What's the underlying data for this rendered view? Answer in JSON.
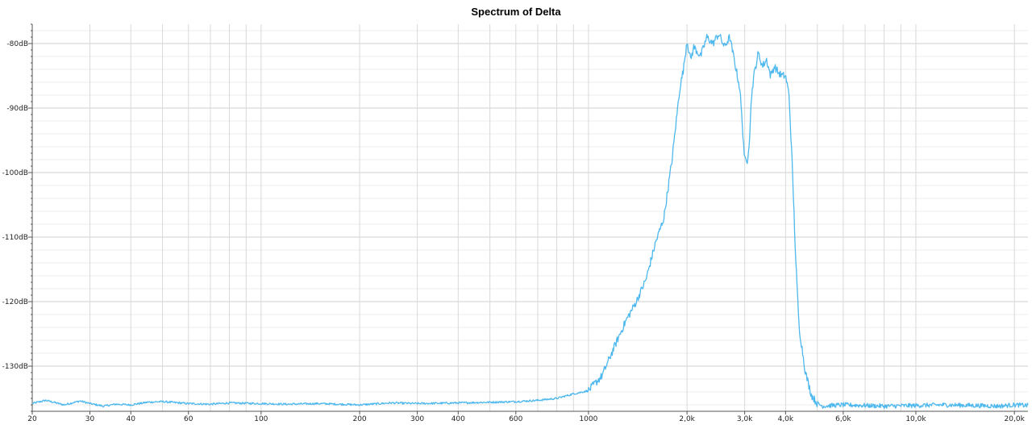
{
  "chart_data": {
    "type": "line",
    "title": "Spectrum of Delta",
    "xlabel": "",
    "ylabel": "",
    "x_scale": "log",
    "xlim": [
      20,
      22000
    ],
    "ylim": [
      -137,
      -77
    ],
    "grid": true,
    "legend": "none",
    "x_ticks": [
      {
        "value": 20,
        "label": "20"
      },
      {
        "value": 30,
        "label": "30"
      },
      {
        "value": 40,
        "label": "40"
      },
      {
        "value": 60,
        "label": "60"
      },
      {
        "value": 100,
        "label": "100"
      },
      {
        "value": 200,
        "label": "200"
      },
      {
        "value": 300,
        "label": "300"
      },
      {
        "value": 400,
        "label": "400"
      },
      {
        "value": 600,
        "label": "600"
      },
      {
        "value": 1000,
        "label": "1000"
      },
      {
        "value": 2000,
        "label": "2,0k"
      },
      {
        "value": 3000,
        "label": "3,0k"
      },
      {
        "value": 4000,
        "label": "4,0k"
      },
      {
        "value": 6000,
        "label": "6,0k"
      },
      {
        "value": 10000,
        "label": "10,0k"
      },
      {
        "value": 20000,
        "label": "20,0k"
      }
    ],
    "y_ticks": [
      {
        "value": -80,
        "label": "-80dB"
      },
      {
        "value": -90,
        "label": "-90dB"
      },
      {
        "value": -100,
        "label": "-100dB"
      },
      {
        "value": -110,
        "label": "-110dB"
      },
      {
        "value": -120,
        "label": "-120dB"
      },
      {
        "value": -130,
        "label": "-130dB"
      }
    ],
    "series": [
      {
        "color": "#4db8ee",
        "x": [
          20,
          22,
          25,
          28,
          30,
          33,
          36,
          40,
          45,
          50,
          60,
          70,
          80,
          100,
          120,
          150,
          200,
          250,
          300,
          400,
          500,
          600,
          700,
          800,
          900,
          1000,
          1100,
          1200,
          1300,
          1400,
          1500,
          1600,
          1700,
          1800,
          1900,
          1950,
          2000,
          2050,
          2100,
          2200,
          2300,
          2400,
          2500,
          2600,
          2700,
          2800,
          2900,
          3000,
          3050,
          3100,
          3150,
          3200,
          3300,
          3400,
          3500,
          3600,
          3700,
          3800,
          3900,
          4000,
          4100,
          4200,
          4300,
          4400,
          4600,
          4800,
          5000,
          5200,
          5500,
          6000,
          7000,
          8000,
          10000,
          12000,
          15000,
          18000,
          20000,
          22000
        ],
        "y": [
          -135.8,
          -135.3,
          -136.0,
          -135.4,
          -135.8,
          -136.2,
          -135.9,
          -136.0,
          -135.6,
          -135.5,
          -135.8,
          -135.9,
          -135.7,
          -135.8,
          -135.9,
          -135.8,
          -136.0,
          -135.7,
          -135.8,
          -135.7,
          -135.6,
          -135.5,
          -135.3,
          -135.0,
          -134.3,
          -133.8,
          -131.5,
          -127.0,
          -123.0,
          -120.0,
          -116.5,
          -111.0,
          -107.0,
          -98.0,
          -87.0,
          -84.0,
          -79.5,
          -82.5,
          -80.5,
          -82.0,
          -79.0,
          -80.0,
          -78.5,
          -80.5,
          -79.0,
          -83.0,
          -87.0,
          -98.0,
          -98.5,
          -95.0,
          -88.0,
          -85.0,
          -81.5,
          -83.5,
          -82.5,
          -85.0,
          -83.5,
          -84.5,
          -85.0,
          -85.0,
          -88.0,
          -100.0,
          -114.0,
          -124.0,
          -131.0,
          -134.5,
          -135.8,
          -136.2,
          -136.1,
          -136.0,
          -136.1,
          -136.2,
          -136.1,
          -136.0,
          -136.1,
          -136.2,
          -136.0,
          -136.1
        ]
      }
    ]
  }
}
